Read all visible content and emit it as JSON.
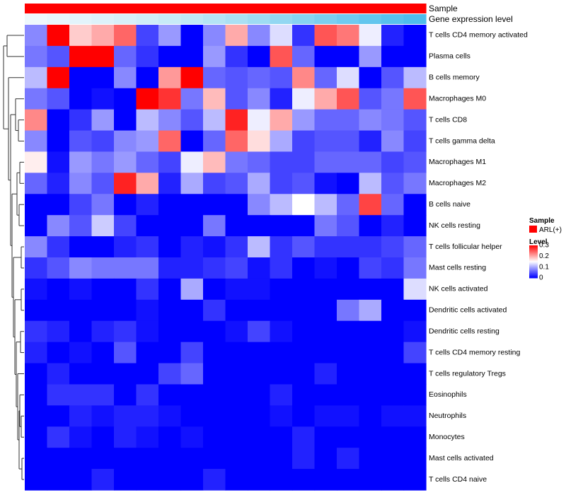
{
  "chart_data": {
    "type": "heatmap",
    "title": "",
    "annotation_tracks": [
      {
        "name": "Sample",
        "colors": [
          "#ff0000",
          "#ff0000",
          "#ff0000",
          "#ff0000",
          "#ff0000",
          "#ff0000",
          "#ff0000",
          "#ff0000",
          "#ff0000",
          "#ff0000",
          "#ff0000",
          "#ff0000",
          "#ff0000",
          "#ff0000",
          "#ff0000",
          "#ff0000",
          "#ff0000",
          "#ff0000"
        ]
      },
      {
        "name": "Gene expression level",
        "colors": [
          "#eef8fc",
          "#e8f6fb",
          "#e3f4fb",
          "#ddf2fa",
          "#d7f0f9",
          "#d0eef8",
          "#c8ebf7",
          "#bfe8f6",
          "#b5e4f5",
          "#aae0f4",
          "#9fdcf3",
          "#93d7f2",
          "#87d3f1",
          "#7bcef0",
          "#6fcaef",
          "#63c5ee",
          "#58c1ed",
          "#4fbdec"
        ]
      }
    ],
    "rows": [
      "T cells CD4 memory activated",
      "Plasma cells",
      "B cells memory",
      "Macrophages M0",
      "T cells CD8",
      "T cells gamma delta",
      "Macrophages M1",
      "Macrophages M2",
      "B cells naive",
      "NK cells resting",
      "T cells follicular helper",
      "Mast cells resting",
      "NK cells activated",
      "Dendritic cells activated",
      "Dendritic cells resting",
      "T cells CD4 memory resting",
      "T cells regulatory  Tregs",
      "Eosinophils",
      "Neutrophils",
      "Monocytes",
      "Mast cells activated",
      "T cells CD4 naive"
    ],
    "n_columns": 18,
    "values": [
      [
        0.08,
        0.32,
        0.18,
        0.2,
        0.24,
        0.04,
        0.09,
        0.0,
        0.08,
        0.2,
        0.08,
        0.13,
        0.03,
        0.25,
        0.23,
        0.14,
        0.02,
        0.0
      ],
      [
        0.07,
        0.05,
        0.32,
        0.31,
        0.06,
        0.03,
        0.0,
        0.0,
        0.09,
        0.03,
        0.0,
        0.25,
        0.06,
        0.0,
        0.0,
        0.09,
        0.0,
        0.0
      ],
      [
        0.11,
        0.32,
        0.0,
        0.0,
        0.08,
        0.0,
        0.21,
        0.31,
        0.06,
        0.05,
        0.06,
        0.05,
        0.22,
        0.06,
        0.13,
        0.0,
        0.05,
        0.11
      ],
      [
        0.07,
        0.05,
        0.0,
        0.01,
        0.0,
        0.32,
        0.27,
        0.07,
        0.19,
        0.05,
        0.08,
        0.02,
        0.14,
        0.2,
        0.25,
        0.05,
        0.07,
        0.25
      ],
      [
        0.22,
        0.0,
        0.03,
        0.09,
        0.0,
        0.11,
        0.08,
        0.05,
        0.11,
        0.28,
        0.14,
        0.2,
        0.09,
        0.06,
        0.06,
        0.08,
        0.07,
        0.05
      ],
      [
        0.08,
        0.0,
        0.05,
        0.04,
        0.08,
        0.09,
        0.24,
        0.0,
        0.06,
        0.24,
        0.17,
        0.1,
        0.04,
        0.05,
        0.05,
        0.02,
        0.08,
        0.04
      ],
      [
        0.16,
        0.01,
        0.09,
        0.07,
        0.09,
        0.06,
        0.04,
        0.14,
        0.19,
        0.07,
        0.06,
        0.04,
        0.04,
        0.06,
        0.06,
        0.06,
        0.04,
        0.05
      ],
      [
        0.06,
        0.02,
        0.08,
        0.05,
        0.28,
        0.2,
        0.02,
        0.1,
        0.04,
        0.05,
        0.1,
        0.04,
        0.05,
        0.01,
        0.0,
        0.11,
        0.05,
        0.07
      ],
      [
        0.0,
        0.0,
        0.04,
        0.07,
        0.0,
        0.02,
        0.0,
        0.0,
        0.0,
        0.0,
        0.08,
        0.11,
        0.15,
        0.11,
        0.06,
        0.26,
        0.06,
        0.0
      ],
      [
        0.0,
        0.08,
        0.05,
        0.12,
        0.04,
        0.0,
        0.0,
        0.0,
        0.07,
        0.0,
        0.0,
        0.0,
        0.0,
        0.07,
        0.05,
        0.0,
        0.02,
        0.0
      ],
      [
        0.08,
        0.03,
        0.0,
        0.0,
        0.02,
        0.03,
        0.0,
        0.02,
        0.01,
        0.03,
        0.11,
        0.03,
        0.05,
        0.03,
        0.03,
        0.03,
        0.04,
        0.06
      ],
      [
        0.03,
        0.05,
        0.08,
        0.07,
        0.07,
        0.07,
        0.02,
        0.02,
        0.03,
        0.04,
        0.01,
        0.03,
        0.0,
        0.01,
        0.0,
        0.04,
        0.03,
        0.07
      ],
      [
        0.01,
        0.0,
        0.01,
        0.0,
        0.0,
        0.03,
        0.0,
        0.1,
        0.0,
        0.01,
        0.01,
        0.0,
        0.0,
        0.0,
        0.0,
        0.0,
        0.0,
        0.13
      ],
      [
        0.0,
        0.0,
        0.0,
        0.0,
        0.0,
        0.01,
        0.0,
        0.0,
        0.03,
        0.0,
        0.0,
        0.0,
        0.0,
        0.0,
        0.07,
        0.1,
        0.0,
        0.0
      ],
      [
        0.03,
        0.02,
        0.0,
        0.02,
        0.03,
        0.01,
        0.0,
        0.0,
        0.0,
        0.01,
        0.04,
        0.01,
        0.0,
        0.0,
        0.0,
        0.0,
        0.0,
        0.01
      ],
      [
        0.02,
        0.0,
        0.01,
        0.0,
        0.05,
        0.0,
        0.0,
        0.04,
        0.0,
        0.0,
        0.0,
        0.0,
        0.0,
        0.0,
        0.0,
        0.0,
        0.0,
        0.04
      ],
      [
        0.0,
        0.02,
        0.0,
        0.0,
        0.0,
        0.0,
        0.04,
        0.06,
        0.0,
        0.0,
        0.0,
        0.0,
        0.0,
        0.02,
        0.0,
        0.0,
        0.0,
        0.0
      ],
      [
        0.0,
        0.03,
        0.03,
        0.03,
        0.0,
        0.03,
        0.0,
        0.0,
        0.0,
        0.0,
        0.0,
        0.02,
        0.0,
        0.0,
        0.0,
        0.0,
        0.0,
        0.0
      ],
      [
        0.0,
        0.0,
        0.02,
        0.01,
        0.02,
        0.02,
        0.01,
        0.0,
        0.0,
        0.0,
        0.0,
        0.01,
        0.0,
        0.01,
        0.01,
        0.0,
        0.01,
        0.01
      ],
      [
        0.0,
        0.03,
        0.01,
        0.0,
        0.02,
        0.01,
        0.0,
        0.01,
        0.0,
        0.0,
        0.0,
        0.0,
        0.02,
        0.0,
        0.0,
        0.0,
        0.0,
        0.0
      ],
      [
        0.0,
        0.0,
        0.0,
        0.0,
        0.0,
        0.0,
        0.0,
        0.0,
        0.0,
        0.0,
        0.0,
        0.0,
        0.02,
        0.0,
        0.02,
        0.0,
        0.0,
        0.0
      ],
      [
        0.0,
        0.0,
        0.0,
        0.02,
        0.0,
        0.0,
        0.0,
        0.0,
        0.02,
        0.0,
        0.0,
        0.0,
        0.0,
        0.0,
        0.0,
        0.0,
        0.0,
        0.0
      ]
    ],
    "color_scale": {
      "min": 0,
      "mid": 0.15,
      "max": 0.3,
      "low": "#0000ff",
      "midcolor": "#ffffff",
      "high": "#ff0000"
    },
    "legend": {
      "position": "right",
      "sample_title": "Sample",
      "sample_entry": "ARL(+)",
      "sample_color": "#ff0000",
      "level_title": "Level",
      "level_ticks": [
        {
          "value": 0.3,
          "label": "0.3"
        },
        {
          "value": 0.2,
          "label": "0.2"
        },
        {
          "value": 0.1,
          "label": "0.1"
        },
        {
          "value": 0,
          "label": "0"
        }
      ]
    }
  }
}
